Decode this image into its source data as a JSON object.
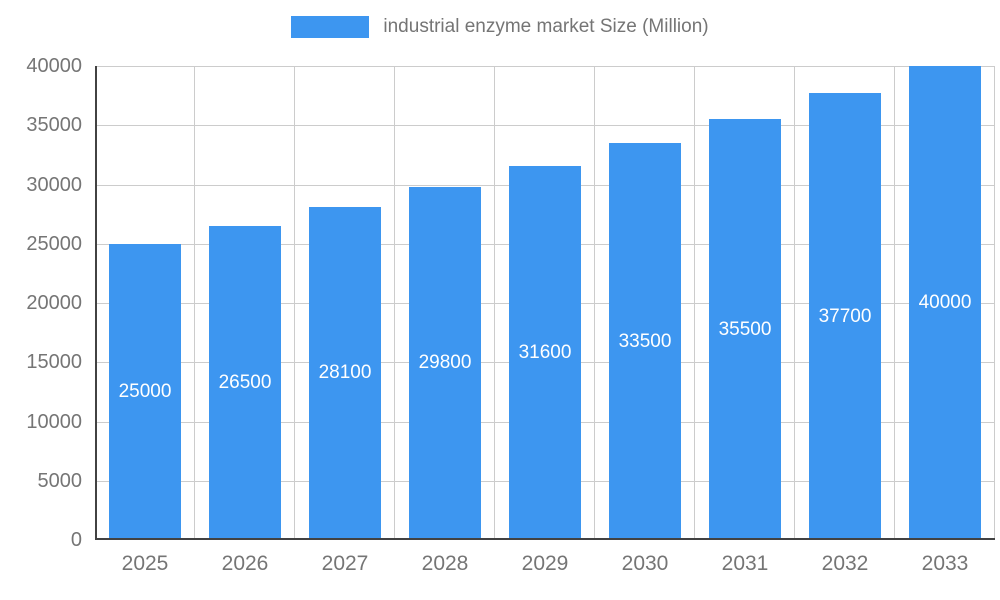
{
  "legend": {
    "label": "industrial enzyme market Size (Million)",
    "color": "#3D96F0"
  },
  "chart_data": {
    "type": "bar",
    "title": "industrial enzyme market Size (Million)",
    "categories": [
      "2025",
      "2026",
      "2027",
      "2028",
      "2029",
      "2030",
      "2031",
      "2032",
      "2033"
    ],
    "values": [
      25000,
      26500,
      28100,
      29800,
      31600,
      33500,
      35500,
      37700,
      40000
    ],
    "value_labels_shown": true,
    "value_label_color": "#ffffff",
    "bar_color": "#3D96F0",
    "xlabel": "",
    "ylabel": "",
    "ylim": [
      0,
      40000
    ],
    "ytick_step": 5000,
    "grid": true,
    "grid_color": "#cccccc",
    "axis_color": "#424242",
    "tick_label_color": "#757575",
    "legend_position": "top-center"
  }
}
